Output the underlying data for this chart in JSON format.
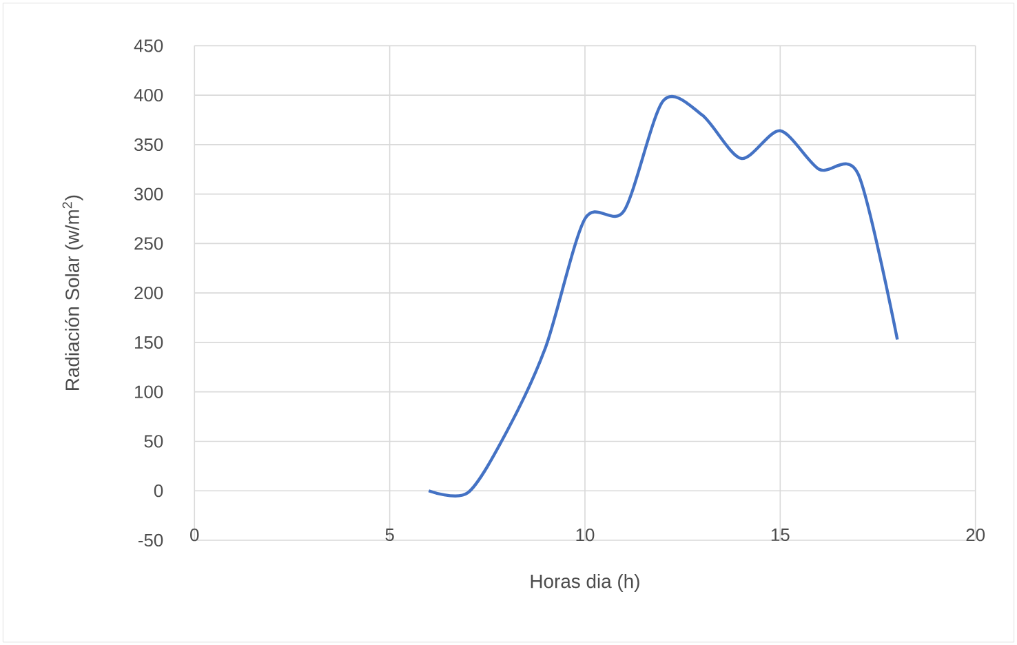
{
  "chart_data": {
    "type": "line",
    "xlabel": "Horas dia (h)",
    "ylabel": "Radiación Solar (w/m$^{2}$)",
    "x": [
      6,
      7,
      8,
      9,
      10,
      11,
      12,
      13,
      14,
      15,
      16,
      17,
      18
    ],
    "series": [
      {
        "color": "#4472c4",
        "values": [
          0,
          -2,
          60,
          146,
          275,
          283,
          394,
          380,
          336,
          364,
          325,
          320,
          153
        ]
      }
    ],
    "xlim": [
      0,
      20
    ],
    "xticks": [
      0,
      5,
      10,
      15,
      20
    ],
    "ylim": [
      -50,
      450
    ],
    "yticks": [
      -50,
      0,
      50,
      100,
      150,
      200,
      250,
      300,
      350,
      400,
      450
    ],
    "grid": true,
    "marker": "none",
    "line_style": "solid"
  }
}
